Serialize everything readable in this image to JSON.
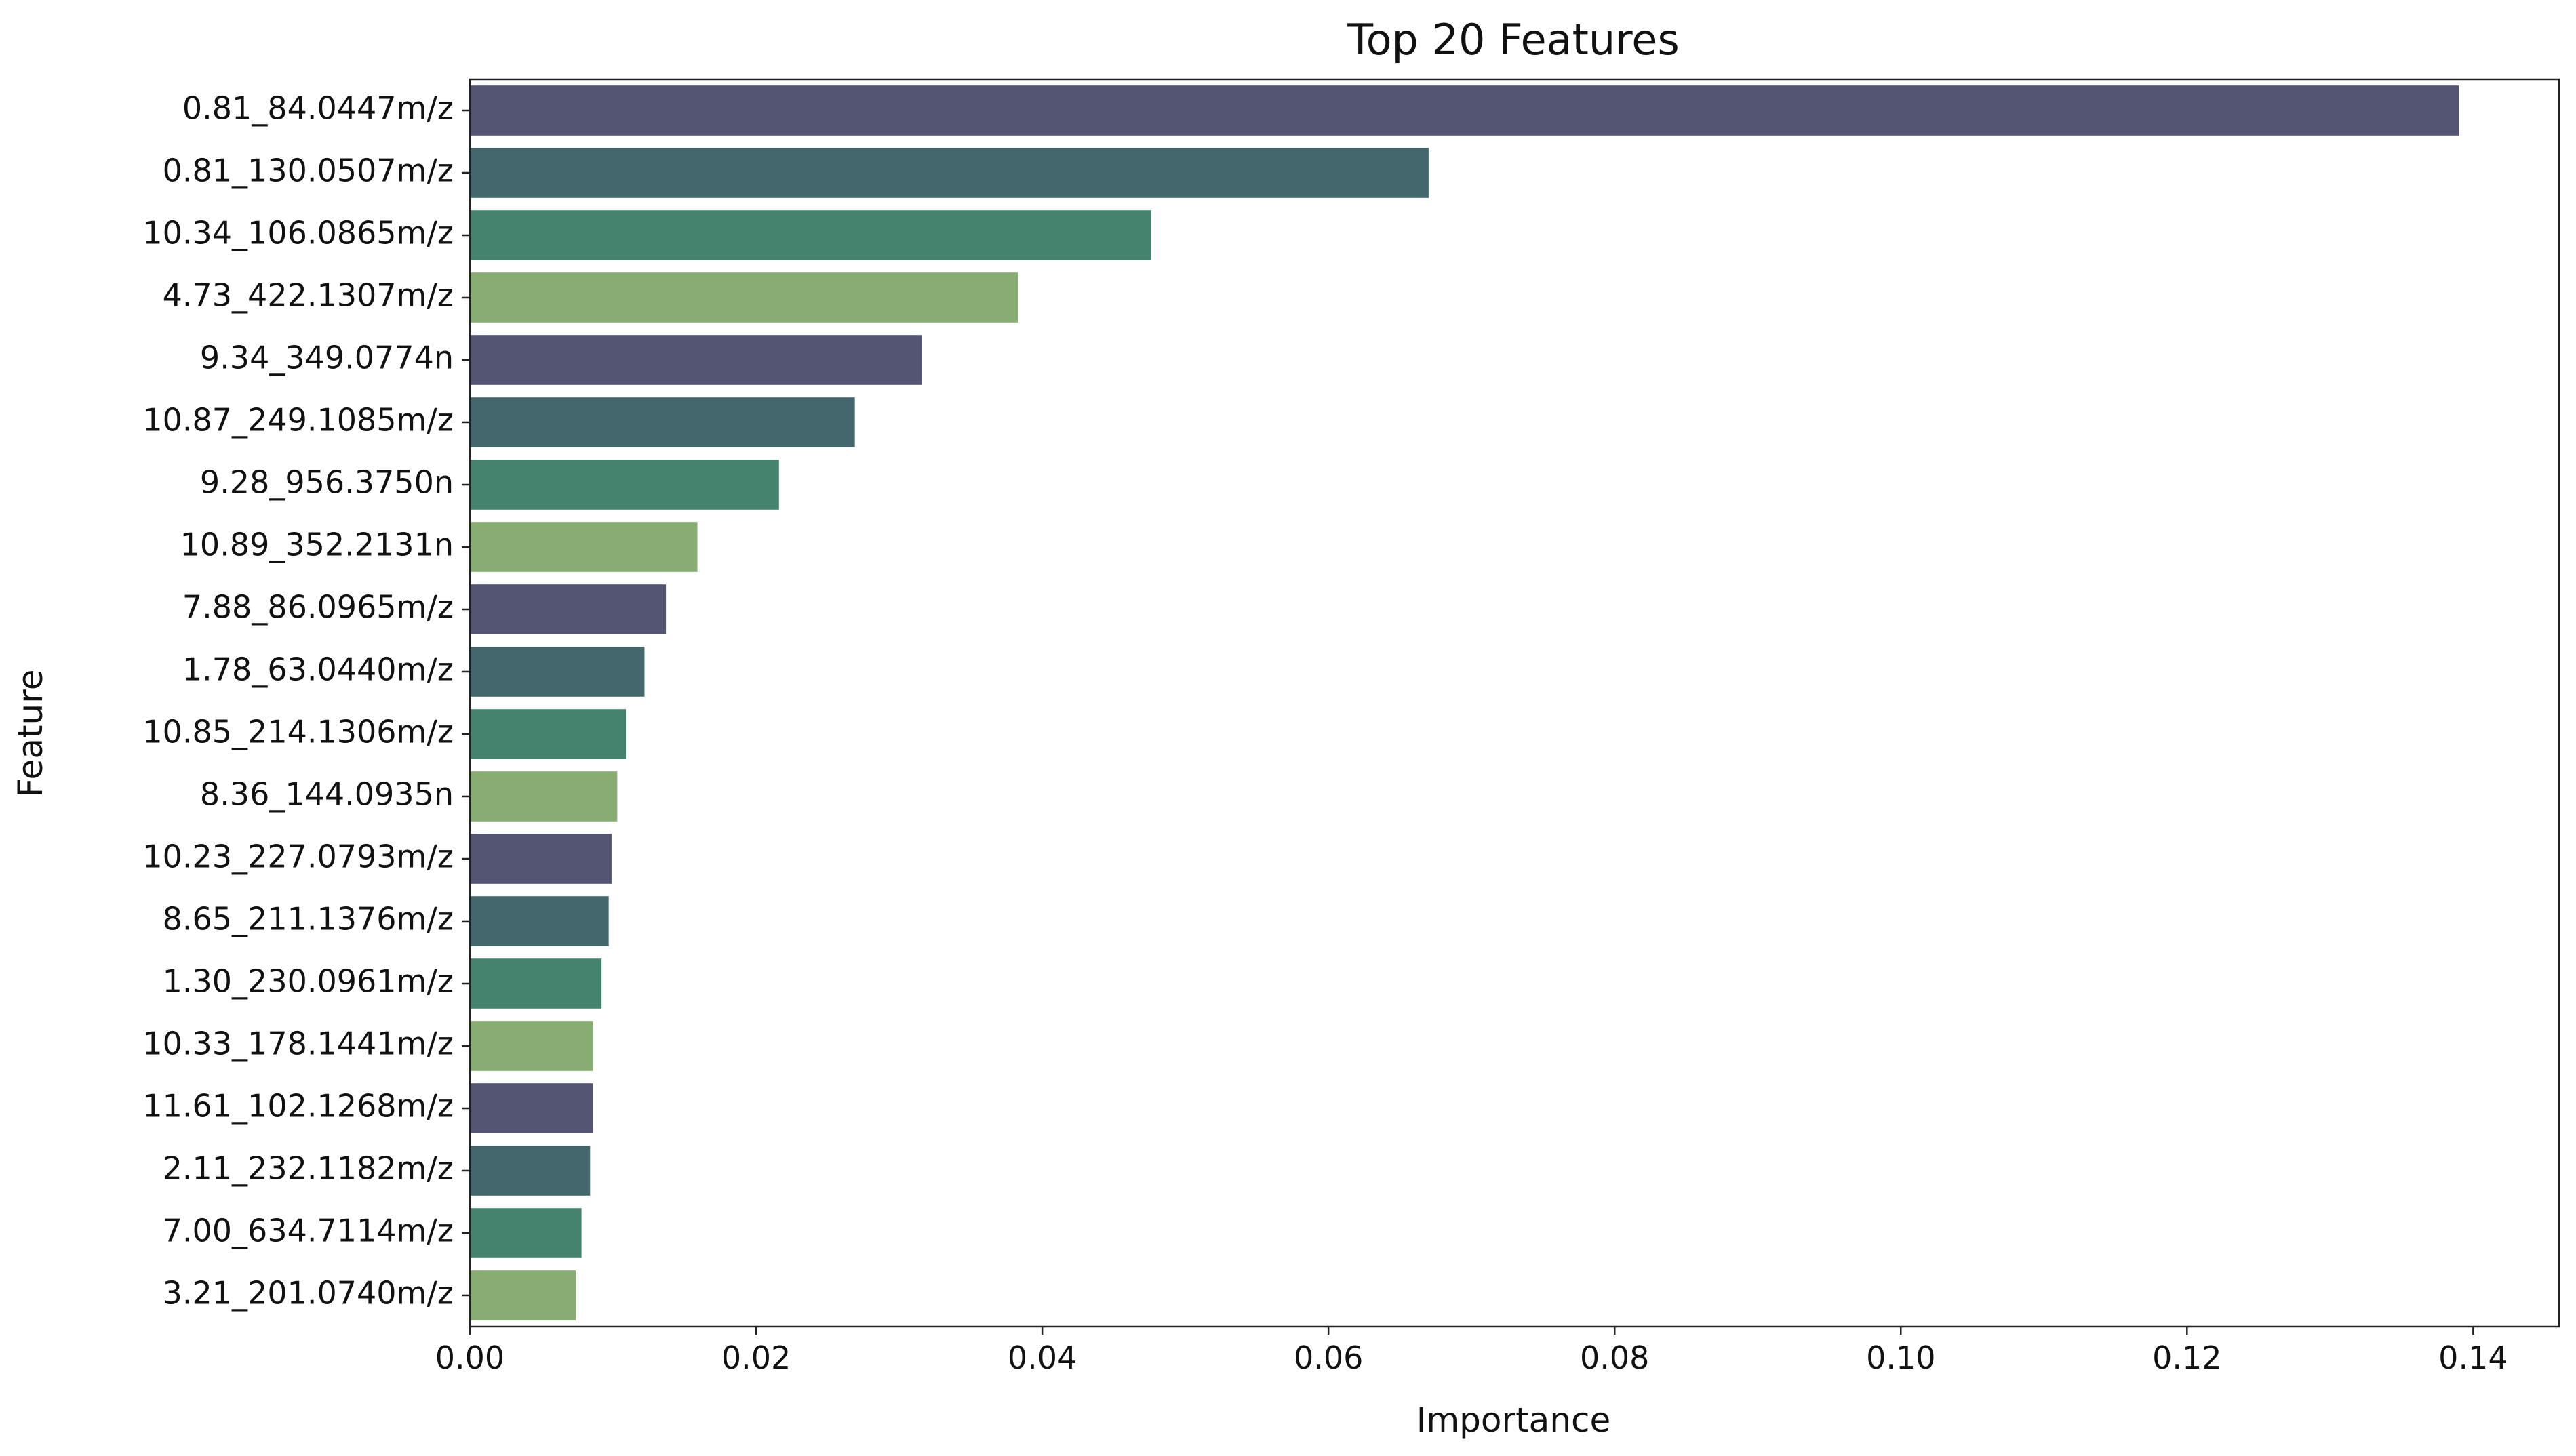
{
  "chart_data": {
    "type": "bar",
    "orientation": "horizontal",
    "title": "Top 20 Features",
    "xlabel": "Importance",
    "ylabel": "Feature",
    "xlim": [
      0,
      0.146
    ],
    "xticks": [
      0.0,
      0.02,
      0.04,
      0.06,
      0.08,
      0.1,
      0.12,
      0.14
    ],
    "xtick_labels": [
      "0.00",
      "0.02",
      "0.04",
      "0.06",
      "0.08",
      "0.10",
      "0.12",
      "0.14"
    ],
    "grid": false,
    "categories": [
      "0.81_84.0447m/z",
      "0.81_130.0507m/z",
      "10.34_106.0865m/z",
      "4.73_422.1307m/z",
      "9.34_349.0774n",
      "10.87_249.1085m/z",
      "9.28_956.3750n",
      "10.89_352.2131n",
      "7.88_86.0965m/z",
      "1.78_63.0440m/z",
      "10.85_214.1306m/z",
      "8.36_144.0935n",
      "10.23_227.0793m/z",
      "8.65_211.1376m/z",
      "1.30_230.0961m/z",
      "10.33_178.1441m/z",
      "11.61_102.1268m/z",
      "2.11_232.1182m/z",
      "7.00_634.7114m/z",
      "3.21_201.0740m/z"
    ],
    "values": [
      0.139,
      0.067,
      0.0476,
      0.0383,
      0.0316,
      0.0269,
      0.0216,
      0.0159,
      0.0137,
      0.0122,
      0.0109,
      0.0103,
      0.0099,
      0.0097,
      0.0092,
      0.0086,
      0.0086,
      0.0084,
      0.0078,
      0.0074
    ],
    "colors": [
      "#545473",
      "#43676d",
      "#46836e",
      "#88ad73"
    ]
  }
}
